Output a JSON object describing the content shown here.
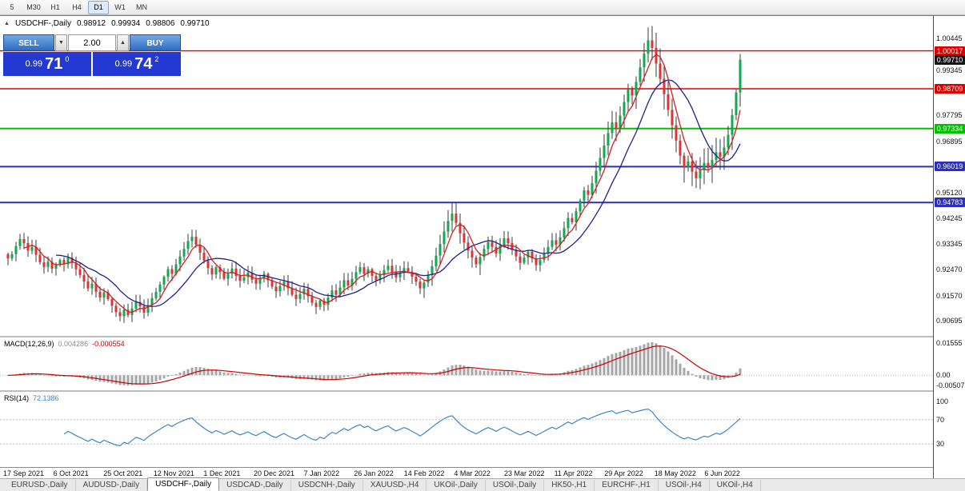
{
  "toolbar": {
    "timeframes": [
      {
        "label": "5",
        "active": false
      },
      {
        "label": "M30",
        "active": false
      },
      {
        "label": "H1",
        "active": false
      },
      {
        "label": "H4",
        "active": false
      },
      {
        "label": "D1",
        "active": true
      },
      {
        "label": "W1",
        "active": false
      },
      {
        "label": "MN",
        "active": false
      }
    ]
  },
  "chart": {
    "title": {
      "symbol": "USDCHF-,Daily",
      "open": "0.98912",
      "high": "0.99934",
      "low": "0.98806",
      "close": "0.99710"
    },
    "one_click": {
      "sell_label": "SELL",
      "buy_label": "BUY",
      "volume": "2.00",
      "sell_price": {
        "base": "0.99",
        "pips": "71",
        "point": "0"
      },
      "buy_price": {
        "base": "0.99",
        "pips": "74",
        "point": "2"
      }
    },
    "current_price": {
      "label": "0.99710",
      "box_color": "#141414"
    }
  },
  "macd": {
    "label": "MACD(12,26,9)",
    "main_value": "0.004286",
    "signal_value": "-0.000554",
    "axis": [
      "0.01555",
      "0.00",
      "-0.00507"
    ]
  },
  "rsi": {
    "label": "RSI(14)",
    "value": "72.1386",
    "axis": [
      100,
      70,
      30
    ],
    "guide_levels": [
      70,
      30
    ]
  },
  "tabs": [
    {
      "label": "EURUSD-,Daily",
      "active": false
    },
    {
      "label": "AUDUSD-,Daily",
      "active": false
    },
    {
      "label": "USDCHF-,Daily",
      "active": true
    },
    {
      "label": "USDCAD-,Daily",
      "active": false
    },
    {
      "label": "USDCNH-,Daily",
      "active": false
    },
    {
      "label": "XAUUSD-,H4",
      "active": false
    },
    {
      "label": "UKOil-,Daily",
      "active": false
    },
    {
      "label": "USOil-,Daily",
      "active": false
    },
    {
      "label": "HK50-,H1",
      "active": false
    },
    {
      "label": "EURCHF-,H1",
      "active": false
    },
    {
      "label": "USOil-,H4",
      "active": false
    },
    {
      "label": "UKOil-,H4",
      "active": false
    }
  ],
  "colors": {
    "bull": "#0faa4e",
    "bear": "#e03232",
    "wick": "#3a3a3a",
    "ma_fast": "#d02020",
    "ma_slow": "#20208c",
    "macd_hist": "#a6a6a6",
    "macd_signal": "#cc0000",
    "rsi_line": "#3d85c8"
  },
  "chart_data": {
    "type": "candlestick",
    "symbol": "USDCHF",
    "period": "Daily",
    "ylim": [
      0.904,
      1.01
    ],
    "y_axis_ticks": [
      "1.00445",
      "0.99345",
      "0.97795",
      "0.96895",
      "0.95120",
      "0.94245",
      "0.93345",
      "0.92470",
      "0.91570",
      "0.90695"
    ],
    "x_axis_labels": [
      "17 Sep 2021",
      "6 Oct 2021",
      "25 Oct 2021",
      "12 Nov 2021",
      "1 Dec 2021",
      "20 Dec 2021",
      "7 Jan 2022",
      "26 Jan 2022",
      "14 Feb 2022",
      "4 Mar 2022",
      "23 Mar 2022",
      "11 Apr 2022",
      "29 Apr 2022",
      "18 May 2022",
      "6 Jun 2022"
    ],
    "levels": [
      {
        "price": 1.00017,
        "label": "1.00017",
        "color": "#dd0000",
        "width": 1.4
      },
      {
        "price": 0.98709,
        "label": "0.98709",
        "color": "#dd0000",
        "width": 1.4
      },
      {
        "price": 0.97334,
        "label": "0.97334",
        "color": "#00c000",
        "width": 2
      },
      {
        "price": 0.96019,
        "label": "0.96019",
        "color": "#2a2fbe",
        "width": 2
      },
      {
        "price": 0.94783,
        "label": "0.94783",
        "color": "#2a2fbe",
        "width": 2
      }
    ],
    "current_price": 0.9971,
    "closes": [
      0.9285,
      0.93,
      0.9328,
      0.9352,
      0.9338,
      0.9312,
      0.9325,
      0.9298,
      0.9272,
      0.9256,
      0.9274,
      0.925,
      0.9262,
      0.928,
      0.9265,
      0.9288,
      0.927,
      0.9248,
      0.9228,
      0.9206,
      0.9182,
      0.9198,
      0.917,
      0.915,
      0.9168,
      0.9145,
      0.9122,
      0.91,
      0.9086,
      0.9108,
      0.909,
      0.9112,
      0.9135,
      0.912,
      0.9098,
      0.9125,
      0.9148,
      0.917,
      0.9195,
      0.9222,
      0.9248,
      0.9232,
      0.9265,
      0.9292,
      0.9318,
      0.9345,
      0.936,
      0.9332,
      0.9305,
      0.9278,
      0.9252,
      0.923,
      0.9255,
      0.9238,
      0.9215,
      0.9232,
      0.925,
      0.9225,
      0.9208,
      0.922,
      0.9236,
      0.9212,
      0.9198,
      0.9215,
      0.9232,
      0.921,
      0.9188,
      0.9172,
      0.919,
      0.9205,
      0.9182,
      0.916,
      0.9145,
      0.9162,
      0.918,
      0.9155,
      0.9132,
      0.9118,
      0.914,
      0.9125,
      0.915,
      0.9175,
      0.916,
      0.9185,
      0.921,
      0.9192,
      0.9215,
      0.9238,
      0.9255,
      0.9232,
      0.9248,
      0.9225,
      0.921,
      0.9228,
      0.9245,
      0.926,
      0.9238,
      0.922,
      0.9235,
      0.9252,
      0.924,
      0.9222,
      0.9205,
      0.9182,
      0.9202,
      0.9228,
      0.9258,
      0.9295,
      0.9335,
      0.9378,
      0.9415,
      0.944,
      0.9408,
      0.9372,
      0.934,
      0.9312,
      0.9288,
      0.9265,
      0.929,
      0.9318,
      0.9342,
      0.9325,
      0.9302,
      0.933,
      0.9355,
      0.9338,
      0.9315,
      0.9292,
      0.927,
      0.9288,
      0.9308,
      0.9285,
      0.9262,
      0.928,
      0.9302,
      0.9325,
      0.9348,
      0.9332,
      0.9358,
      0.939,
      0.9425,
      0.941,
      0.9448,
      0.9485,
      0.952,
      0.9505,
      0.9545,
      0.9588,
      0.9632,
      0.9675,
      0.9718,
      0.9755,
      0.9732,
      0.9778,
      0.9825,
      0.987,
      0.9848,
      0.9895,
      0.9945,
      0.9992,
      1.0038,
      1.0012,
      0.9958,
      0.9905,
      0.9852,
      0.9798,
      0.9745,
      0.9692,
      0.964,
      0.9598,
      0.962,
      0.9585,
      0.9562,
      0.959,
      0.9615,
      0.9598,
      0.9625,
      0.9652,
      0.9635,
      0.9668,
      0.9712,
      0.978,
      0.9858,
      0.9971
    ],
    "indicators": {
      "ma_fast_period": 5,
      "ma_slow_period": 13,
      "macd": [
        12,
        26,
        9
      ],
      "rsi_period": 14
    }
  }
}
